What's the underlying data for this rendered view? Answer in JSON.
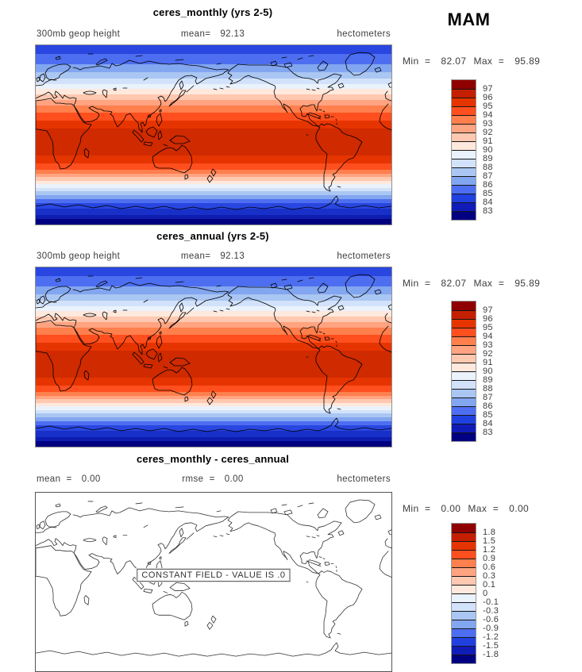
{
  "page": {
    "season_label": "MAM",
    "background": "#ffffff"
  },
  "panels": [
    {
      "title": "ceres_monthly (yrs 2-5)",
      "field_label": "300mb geop height",
      "mean_label": "mean=",
      "mean_value": "92.13",
      "units": "hectometers",
      "min_label": "Min  =",
      "min_value": "82.07",
      "max_label": "Max  =",
      "max_value": "95.89"
    },
    {
      "title": "ceres_annual (yrs 2-5)",
      "field_label": "300mb geop height",
      "mean_label": "mean=",
      "mean_value": "92.13",
      "units": "hectometers",
      "min_label": "Min  =",
      "min_value": "82.07",
      "max_label": "Max  =",
      "max_value": "95.89"
    },
    {
      "title": "ceres_monthly - ceres_annual",
      "mean_label": "mean  =",
      "mean_value": "0.00",
      "rmse_label": "rmse  =",
      "rmse_value": "0.00",
      "units": "hectometers",
      "min_label": "Min  =",
      "min_value": "0.00",
      "max_label": "Max  =",
      "max_value": "0.00",
      "note": "CONSTANT FIELD - VALUE IS .0"
    }
  ],
  "colorbars": {
    "abs": {
      "labels": [
        "97",
        "96",
        "95",
        "94",
        "93",
        "92",
        "91",
        "90",
        "89",
        "88",
        "87",
        "86",
        "85",
        "84",
        "83"
      ],
      "colors": [
        "#8f0000",
        "#c41f00",
        "#e63400",
        "#ff4f1e",
        "#ff7f4d",
        "#ffa380",
        "#ffc8b0",
        "#ffe8dc",
        "#eaf2fc",
        "#d2e2fa",
        "#aac6f2",
        "#82a6f0",
        "#4d6ef0",
        "#2040e0",
        "#101cb8",
        "#000080"
      ]
    },
    "diff": {
      "labels": [
        "1.8",
        "1.5",
        "1.2",
        "0.9",
        "0.6",
        "0.3",
        "0.1",
        "0",
        "-0.1",
        "-0.3",
        "-0.6",
        "-0.9",
        "-1.2",
        "-1.5",
        "-1.8"
      ],
      "colors": [
        "#8f0000",
        "#c41f00",
        "#e63400",
        "#ff4f1e",
        "#ff7f4d",
        "#ffa380",
        "#ffc8b0",
        "#ffe8dc",
        "#eaf2fc",
        "#d2e2fa",
        "#aac6f2",
        "#82a6f0",
        "#4d6ef0",
        "#2040e0",
        "#101cb8",
        "#000080"
      ]
    }
  },
  "map_bands": [
    {
      "t": 0.0,
      "c": "#2946e0"
    },
    {
      "t": 0.05,
      "c": "#4d6ef0"
    },
    {
      "t": 0.105,
      "c": "#82a6f0"
    },
    {
      "t": 0.15,
      "c": "#aac6f2"
    },
    {
      "t": 0.185,
      "c": "#d2e2fa"
    },
    {
      "t": 0.215,
      "c": "#eaf2fc"
    },
    {
      "t": 0.245,
      "c": "#ffe8dc"
    },
    {
      "t": 0.275,
      "c": "#ffc8b0"
    },
    {
      "t": 0.305,
      "c": "#ffa380"
    },
    {
      "t": 0.335,
      "c": "#ff7f4d"
    },
    {
      "t": 0.375,
      "c": "#ff4f1e"
    },
    {
      "t": 0.42,
      "c": "#e63400"
    },
    {
      "t": 0.465,
      "c": "#cf2a00"
    },
    {
      "t": 0.615,
      "c": "#e63400"
    },
    {
      "t": 0.66,
      "c": "#ff4f1e"
    },
    {
      "t": 0.695,
      "c": "#ff7f4d"
    },
    {
      "t": 0.715,
      "c": "#ffa380"
    },
    {
      "t": 0.735,
      "c": "#ffc8b0"
    },
    {
      "t": 0.755,
      "c": "#ffe8dc"
    },
    {
      "t": 0.775,
      "c": "#eaf2fc"
    },
    {
      "t": 0.795,
      "c": "#d2e2fa"
    },
    {
      "t": 0.815,
      "c": "#aac6f2"
    },
    {
      "t": 0.835,
      "c": "#82a6f0"
    },
    {
      "t": 0.858,
      "c": "#4d6ef0"
    },
    {
      "t": 0.882,
      "c": "#2946e0"
    },
    {
      "t": 0.912,
      "c": "#1830c8"
    },
    {
      "t": 0.945,
      "c": "#0e1db0"
    },
    {
      "t": 0.97,
      "c": "#000080"
    }
  ],
  "chart_data": [
    {
      "type": "heatmap",
      "title": "ceres_monthly (yrs 2-5)",
      "variable": "300mb geop height",
      "units": "hectometers",
      "season": "MAM",
      "statistics": {
        "mean": 92.13,
        "min": 82.07,
        "max": 95.89
      },
      "contour_levels": [
        83,
        84,
        85,
        86,
        87,
        88,
        89,
        90,
        91,
        92,
        93,
        94,
        95,
        96,
        97
      ],
      "palette_top_to_bottom": [
        "#8f0000",
        "#c41f00",
        "#e63400",
        "#ff4f1e",
        "#ff7f4d",
        "#ffa380",
        "#ffc8b0",
        "#ffe8dc",
        "#eaf2fa",
        "#d2e2fa",
        "#aac6f2",
        "#82a6f0",
        "#4d6ef0",
        "#2040e0",
        "#101cb8",
        "#000080"
      ],
      "projection": "global equirectangular world map, Pacific-centered, coastlines overlaid",
      "pattern": "zonally symmetric: maximum (~96-97 hectometers) across the tropics, decreasing to ~82-83 at both poles",
      "legend_position": "right"
    },
    {
      "type": "heatmap",
      "title": "ceres_annual (yrs 2-5)",
      "variable": "300mb geop height",
      "units": "hectometers",
      "season": "MAM",
      "statistics": {
        "mean": 92.13,
        "min": 82.07,
        "max": 95.89
      },
      "contour_levels": [
        83,
        84,
        85,
        86,
        87,
        88,
        89,
        90,
        91,
        92,
        93,
        94,
        95,
        96,
        97
      ],
      "pattern": "identical to ceres_monthly panel: tropical maximum, polar minima",
      "legend_position": "right"
    },
    {
      "type": "heatmap",
      "title": "ceres_monthly - ceres_annual",
      "units": "hectometers",
      "statistics": {
        "mean": 0.0,
        "rmse": 0.0,
        "min": 0.0,
        "max": 0.0
      },
      "contour_levels": [
        -1.8,
        -1.5,
        -1.2,
        -0.9,
        -0.6,
        -0.3,
        -0.1,
        0,
        0.1,
        0.3,
        0.6,
        0.9,
        1.2,
        1.5,
        1.8
      ],
      "note": "CONSTANT FIELD - VALUE IS .0",
      "pattern": "difference field is uniformly zero; map drawn with coastlines only, no fill",
      "legend_position": "right"
    }
  ]
}
